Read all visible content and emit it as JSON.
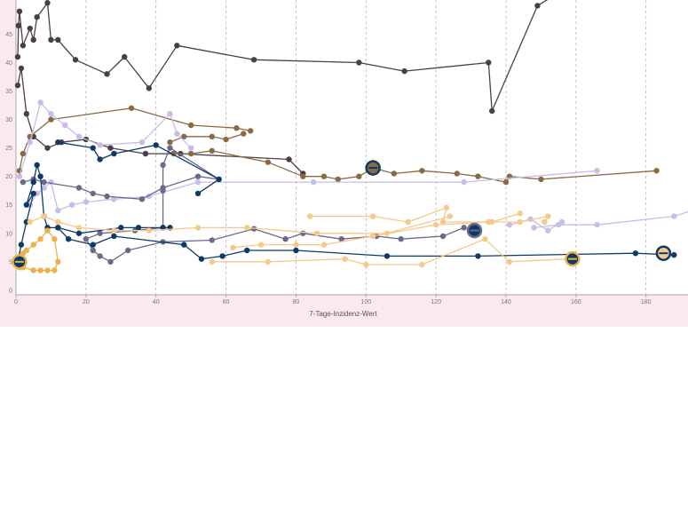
{
  "chart_data": {
    "type": "scatter",
    "title": "",
    "xlabel": "7-Tage-Inzidenz-Wert",
    "ylabel": "",
    "xlim": [
      0,
      192
    ],
    "ylim": [
      -0.8,
      51
    ],
    "x_ticks": [
      0,
      20,
      40,
      60,
      80,
      100,
      120,
      140,
      160,
      180
    ],
    "y_ticks": [
      0,
      5,
      10,
      15,
      20,
      25,
      30,
      35,
      40,
      45
    ],
    "colors": {
      "background": "#fce8f0",
      "plot_background": "#ffffff",
      "gridline": "#c8a8b8",
      "axis": "#aaaaaa"
    },
    "series": [
      {
        "color": "#4a3e48",
        "values": [
          [
            0.5,
            41
          ],
          [
            0.7,
            46.5
          ],
          [
            1,
            49
          ],
          [
            2,
            43
          ],
          [
            4,
            46
          ],
          [
            5,
            44
          ],
          [
            6,
            48
          ],
          [
            9,
            50.5
          ],
          [
            10,
            44
          ],
          [
            12,
            44
          ],
          [
            17,
            40.5
          ],
          [
            26,
            38
          ],
          [
            31,
            41
          ],
          [
            38,
            35.5
          ],
          [
            46,
            43
          ],
          [
            68,
            40.5
          ],
          [
            98,
            40
          ],
          [
            111,
            38.5
          ],
          [
            135,
            40
          ],
          [
            136,
            31.5
          ],
          [
            149,
            50
          ],
          [
            157,
            53
          ]
        ]
      },
      {
        "color": "#4a3e48",
        "values": [
          [
            0.5,
            36
          ],
          [
            1.5,
            39
          ],
          [
            3,
            31
          ],
          [
            5,
            27
          ],
          [
            9,
            25
          ],
          [
            13,
            26
          ],
          [
            20,
            26.5
          ],
          [
            27,
            25
          ],
          [
            37,
            24
          ],
          [
            47,
            24
          ],
          [
            78,
            23
          ],
          [
            82,
            20.5
          ]
        ]
      },
      {
        "color": "#8a6a42",
        "values": [
          [
            1,
            21
          ],
          [
            2,
            24
          ],
          [
            4,
            27
          ],
          [
            10,
            30
          ],
          [
            33,
            32
          ],
          [
            50,
            29
          ],
          [
            63,
            28.5
          ],
          [
            67,
            28
          ]
        ]
      },
      {
        "color": "#8a6a42",
        "values": [
          [
            44,
            26
          ],
          [
            48,
            27
          ],
          [
            56,
            27
          ],
          [
            60,
            26.5
          ],
          [
            65,
            27.5
          ]
        ]
      },
      {
        "color": "#8a6a42",
        "values": [
          [
            45,
            24
          ],
          [
            50,
            24
          ],
          [
            56,
            24.5
          ],
          [
            72,
            22.5
          ],
          [
            82,
            20
          ],
          [
            88,
            20
          ],
          [
            92,
            19.5
          ],
          [
            98,
            20
          ],
          [
            102,
            21.5
          ],
          [
            108,
            20.5
          ],
          [
            116,
            21
          ],
          [
            126,
            20.5
          ],
          [
            132,
            20
          ],
          [
            140,
            19
          ],
          [
            141,
            20
          ],
          [
            150,
            19.5
          ],
          [
            183,
            21
          ]
        ]
      },
      {
        "color": "#c8bce8",
        "values": [
          [
            1,
            20
          ],
          [
            4,
            26
          ],
          [
            7,
            33
          ],
          [
            10,
            31
          ],
          [
            14,
            29
          ],
          [
            18,
            27
          ],
          [
            24,
            25.5
          ],
          [
            36,
            26
          ],
          [
            44,
            31
          ],
          [
            46,
            27.5
          ],
          [
            50,
            25
          ]
        ]
      },
      {
        "color": "#c8bce8",
        "values": [
          [
            4,
            15
          ],
          [
            6,
            17
          ],
          [
            8,
            18
          ],
          [
            10,
            19
          ],
          [
            12,
            14
          ],
          [
            16,
            15
          ],
          [
            20,
            15.5
          ],
          [
            28,
            16
          ],
          [
            38,
            16.5
          ],
          [
            52,
            19
          ],
          [
            85,
            19
          ],
          [
            128,
            19
          ],
          [
            166,
            21
          ]
        ]
      },
      {
        "color": "#c8bce8",
        "values": [
          [
            148,
            11
          ],
          [
            155,
            11.5
          ],
          [
            166,
            11.5
          ],
          [
            188,
            13
          ],
          [
            198,
            15
          ]
        ]
      },
      {
        "color": "#c8bce8",
        "values": [
          [
            141,
            11.5
          ],
          [
            147,
            12.5
          ],
          [
            152,
            10.5
          ],
          [
            156,
            12
          ]
        ]
      },
      {
        "color": "#6a6a8a",
        "values": [
          [
            2,
            19
          ],
          [
            5,
            19.5
          ],
          [
            8,
            19
          ],
          [
            18,
            18
          ],
          [
            22,
            17
          ],
          [
            26,
            16.5
          ],
          [
            36,
            16
          ],
          [
            42,
            18
          ],
          [
            52,
            20
          ],
          [
            58,
            19.5
          ],
          [
            44,
            25
          ],
          [
            42,
            22
          ],
          [
            42,
            17.5
          ],
          [
            42,
            11
          ]
        ]
      },
      {
        "color": "#6a6a8a",
        "values": [
          [
            42,
            11
          ],
          [
            34,
            10.5
          ],
          [
            24,
            10
          ],
          [
            20,
            9
          ],
          [
            22,
            7
          ],
          [
            24,
            6
          ],
          [
            27,
            5
          ],
          [
            32,
            7
          ],
          [
            42,
            8.5
          ],
          [
            56,
            8.8
          ],
          [
            68,
            10.8
          ],
          [
            77,
            9
          ],
          [
            82,
            10
          ],
          [
            93,
            9
          ],
          [
            103,
            9.5
          ],
          [
            110,
            9
          ],
          [
            122,
            9.5
          ],
          [
            128,
            11
          ]
        ]
      },
      {
        "color": "#0d3a66",
        "values": [
          [
            0.5,
            5
          ],
          [
            1.5,
            8
          ],
          [
            3,
            12
          ],
          [
            5,
            17
          ],
          [
            3,
            15
          ],
          [
            5,
            19
          ],
          [
            6,
            22
          ],
          [
            7,
            20
          ],
          [
            8,
            13
          ],
          [
            9,
            11
          ],
          [
            12,
            11
          ],
          [
            18,
            10
          ],
          [
            30,
            11
          ],
          [
            35,
            11
          ],
          [
            42,
            11
          ],
          [
            44,
            11
          ]
        ]
      },
      {
        "color": "#0d3a66",
        "values": [
          [
            12,
            11
          ],
          [
            15,
            9
          ],
          [
            22,
            8
          ],
          [
            28,
            9.5
          ],
          [
            48,
            8
          ],
          [
            53,
            5.5
          ],
          [
            59,
            6
          ],
          [
            66,
            7
          ],
          [
            80,
            7
          ],
          [
            106,
            6
          ],
          [
            132,
            6
          ],
          [
            177,
            6.5
          ],
          [
            188,
            6.2
          ]
        ]
      },
      {
        "color": "#0d3a66",
        "values": [
          [
            12,
            26
          ],
          [
            22,
            25
          ],
          [
            24,
            23
          ],
          [
            28,
            24
          ],
          [
            40,
            25.5
          ],
          [
            58,
            19.5
          ],
          [
            52,
            17
          ]
        ]
      },
      {
        "color": "#e9b24e",
        "values": [
          [
            1,
            4
          ],
          [
            2,
            6.5
          ],
          [
            3,
            7
          ],
          [
            5,
            8
          ],
          [
            7,
            9
          ],
          [
            9,
            10.5
          ],
          [
            11,
            9
          ],
          [
            12,
            5
          ],
          [
            11,
            3.5
          ],
          [
            9,
            3.5
          ],
          [
            7,
            3.5
          ],
          [
            5,
            3.5
          ],
          [
            2,
            4
          ]
        ]
      },
      {
        "color": "#f5c98a",
        "values": [
          [
            4,
            12
          ],
          [
            8,
            13
          ],
          [
            12,
            12
          ],
          [
            18,
            11
          ],
          [
            28,
            10.5
          ],
          [
            38,
            10.5
          ],
          [
            52,
            11
          ],
          [
            66,
            11
          ],
          [
            86,
            10
          ],
          [
            106,
            10
          ],
          [
            124,
            13
          ]
        ]
      },
      {
        "color": "#f5c98a",
        "values": [
          [
            56,
            5
          ],
          [
            72,
            5
          ],
          [
            94,
            5.5
          ],
          [
            100,
            4.5
          ],
          [
            116,
            4.5
          ],
          [
            134,
            9
          ],
          [
            141,
            5
          ],
          [
            158,
            5.5
          ]
        ]
      },
      {
        "color": "#f5c98a",
        "values": [
          [
            62,
            7.5
          ],
          [
            70,
            8
          ],
          [
            80,
            8
          ],
          [
            88,
            8
          ],
          [
            102,
            9.5
          ],
          [
            120,
            11.5
          ],
          [
            135,
            12
          ],
          [
            144,
            12
          ],
          [
            152,
            13
          ],
          [
            151,
            12
          ]
        ]
      },
      {
        "color": "#f5c98a",
        "values": [
          [
            84,
            13
          ],
          [
            102,
            13
          ],
          [
            112,
            12
          ],
          [
            123,
            14.5
          ],
          [
            122,
            12
          ],
          [
            136,
            12
          ],
          [
            144,
            13.5
          ]
        ]
      }
    ],
    "highlight_markers": [
      {
        "x": 1,
        "y": 5,
        "fill": "#0d3a66",
        "ring": "#e9b24e"
      },
      {
        "x": 102,
        "y": 21.5,
        "fill": "#8a6a42",
        "ring": "#0d3a66"
      },
      {
        "x": 131,
        "y": 10.5,
        "fill": "#0d3a66",
        "ring": "#6a6a8a"
      },
      {
        "x": 159,
        "y": 5.5,
        "fill": "#0d3a66",
        "ring": "#e9b24e"
      },
      {
        "x": 185,
        "y": 6.5,
        "fill": "#f5c98a",
        "ring": "#0d3a66"
      }
    ],
    "legend": "none",
    "grid": "vertical dashed at x ticks"
  }
}
